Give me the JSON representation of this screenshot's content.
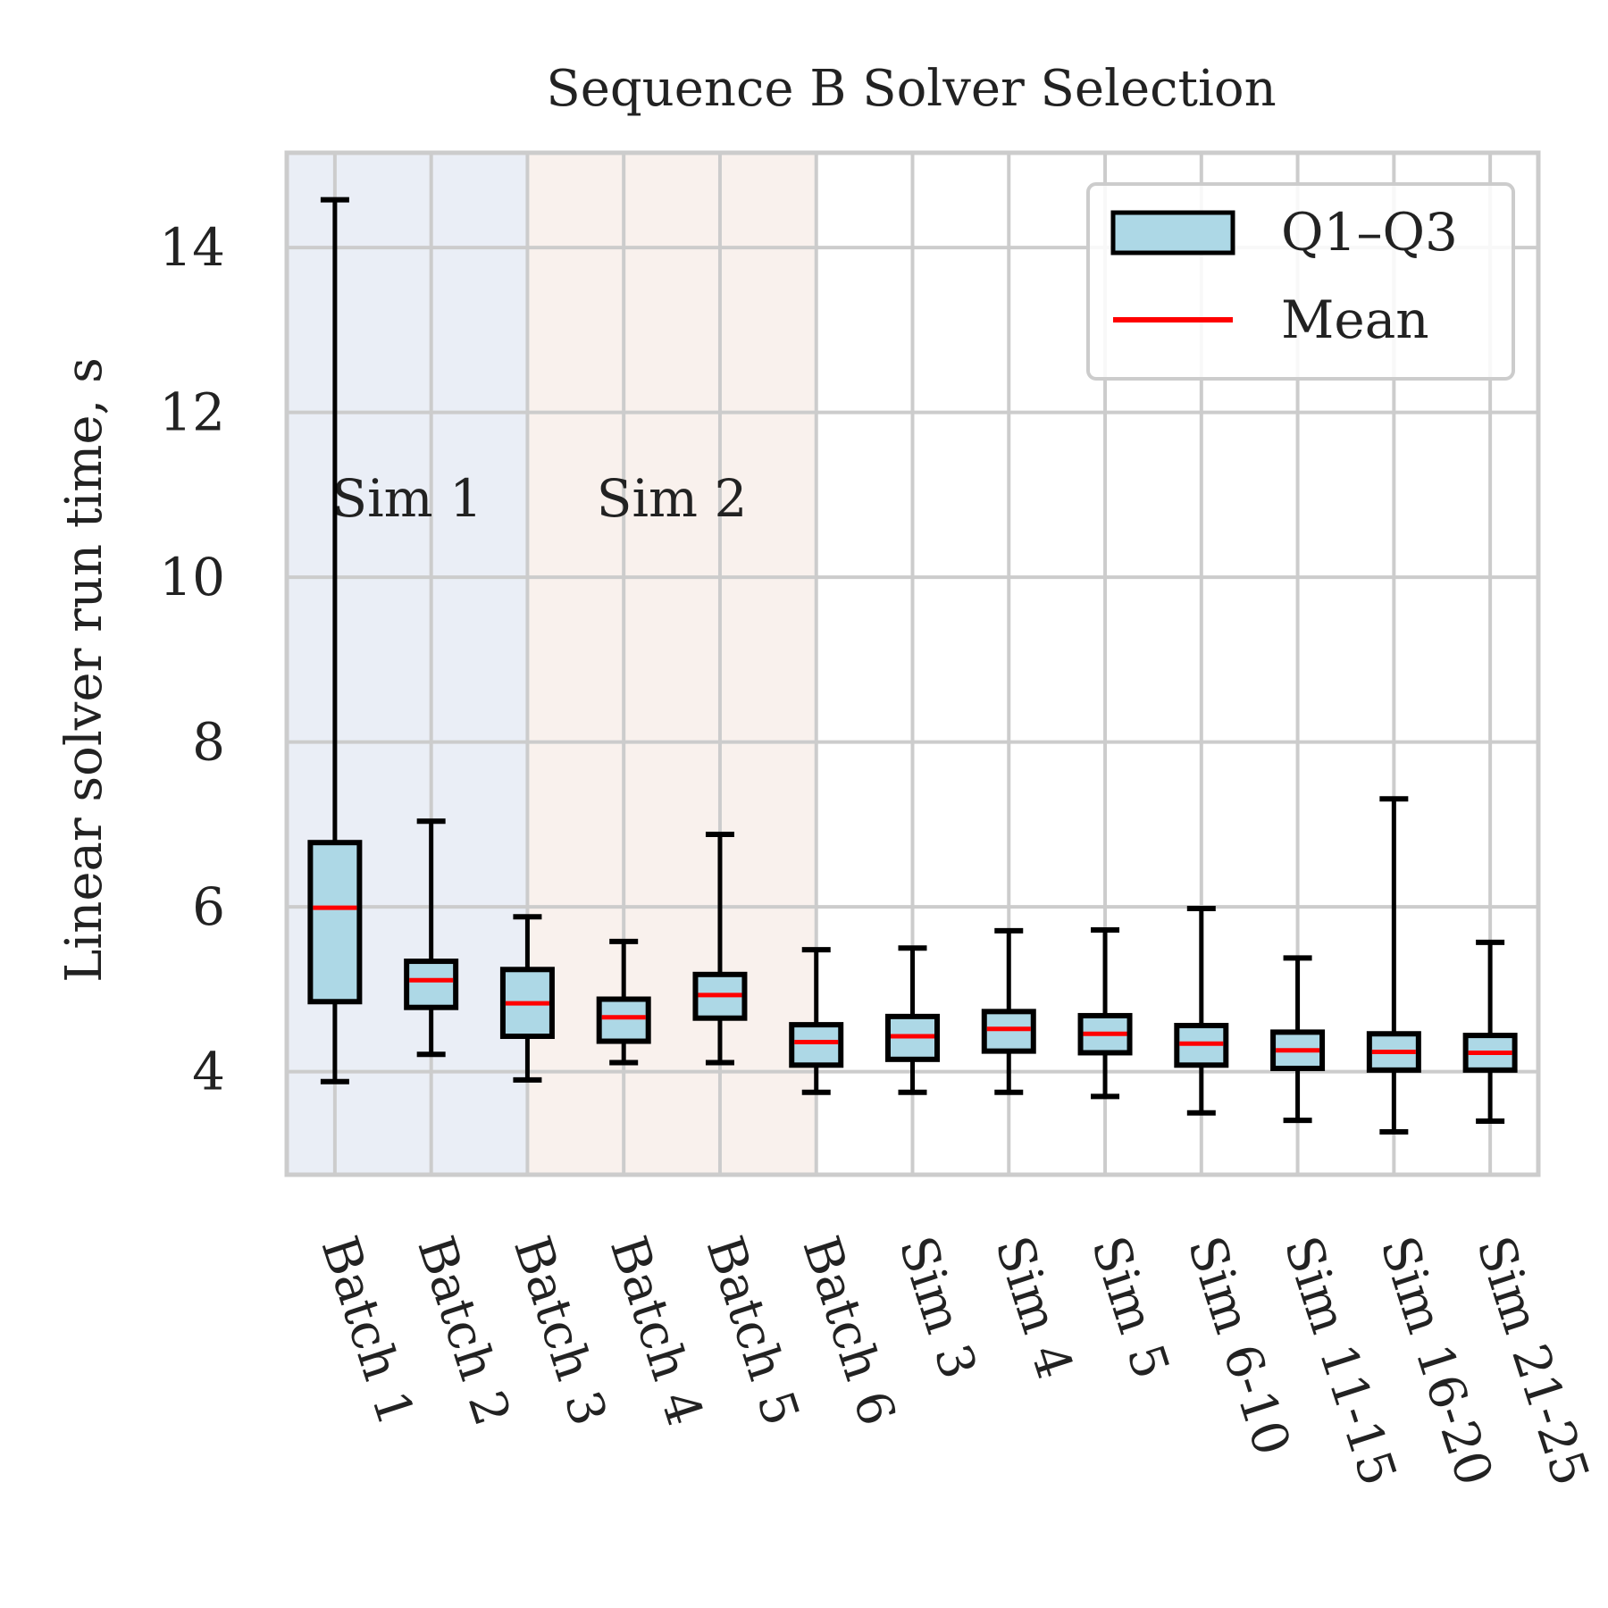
{
  "chart_data": {
    "type": "box",
    "title": "Sequence B Solver Selection",
    "xlabel": "",
    "ylabel": "Linear solver run time, s",
    "ylim": [
      2.75,
      15.15
    ],
    "yticks": [
      4,
      6,
      8,
      10,
      12,
      14
    ],
    "grid": true,
    "legend": {
      "position": "top-right",
      "entries": [
        {
          "label": "Q1–Q3",
          "kind": "box"
        },
        {
          "label": "Mean",
          "kind": "line"
        }
      ]
    },
    "regions": [
      {
        "label": "Sim 1",
        "from": "Batch 1",
        "to": "Batch 3",
        "color": "#eaeef6"
      },
      {
        "label": "Sim 2",
        "from": "Batch 3",
        "to": "Batch 6",
        "color": "#f9f1ed"
      }
    ],
    "categories": [
      "Batch 1",
      "Batch 2",
      "Batch 3",
      "Batch 4",
      "Batch 5",
      "Batch 6",
      "Sim 3",
      "Sim 4",
      "Sim 5",
      "Sim 6-10",
      "Sim 11-15",
      "Sim 16-20",
      "Sim 21-25"
    ],
    "series": [
      {
        "name": "Linear solver run time",
        "boxes": [
          {
            "min": 3.88,
            "q1": 4.85,
            "mean": 5.99,
            "q3": 6.78,
            "max": 14.58
          },
          {
            "min": 4.21,
            "q1": 4.78,
            "mean": 5.11,
            "q3": 5.34,
            "max": 7.04
          },
          {
            "min": 3.9,
            "q1": 4.43,
            "mean": 4.83,
            "q3": 5.24,
            "max": 5.88
          },
          {
            "min": 4.11,
            "q1": 4.37,
            "mean": 4.66,
            "q3": 4.88,
            "max": 5.58
          },
          {
            "min": 4.11,
            "q1": 4.65,
            "mean": 4.93,
            "q3": 5.18,
            "max": 6.88
          },
          {
            "min": 3.75,
            "q1": 4.08,
            "mean": 4.36,
            "q3": 4.57,
            "max": 5.48
          },
          {
            "min": 3.75,
            "q1": 4.15,
            "mean": 4.43,
            "q3": 4.67,
            "max": 5.5
          },
          {
            "min": 3.75,
            "q1": 4.25,
            "mean": 4.52,
            "q3": 4.73,
            "max": 5.71
          },
          {
            "min": 3.7,
            "q1": 4.23,
            "mean": 4.46,
            "q3": 4.68,
            "max": 5.72
          },
          {
            "min": 3.5,
            "q1": 4.08,
            "mean": 4.34,
            "q3": 4.56,
            "max": 5.98
          },
          {
            "min": 3.41,
            "q1": 4.04,
            "mean": 4.26,
            "q3": 4.48,
            "max": 5.38
          },
          {
            "min": 3.27,
            "q1": 4.02,
            "mean": 4.24,
            "q3": 4.46,
            "max": 7.31
          },
          {
            "min": 3.4,
            "q1": 4.02,
            "mean": 4.23,
            "q3": 4.44,
            "max": 5.57
          }
        ]
      }
    ]
  },
  "colors": {
    "box_fill": "#add8e6",
    "box_edge": "#000000",
    "mean_line": "#ff0000",
    "grid": "#cccccc",
    "frame": "#cccccc"
  }
}
